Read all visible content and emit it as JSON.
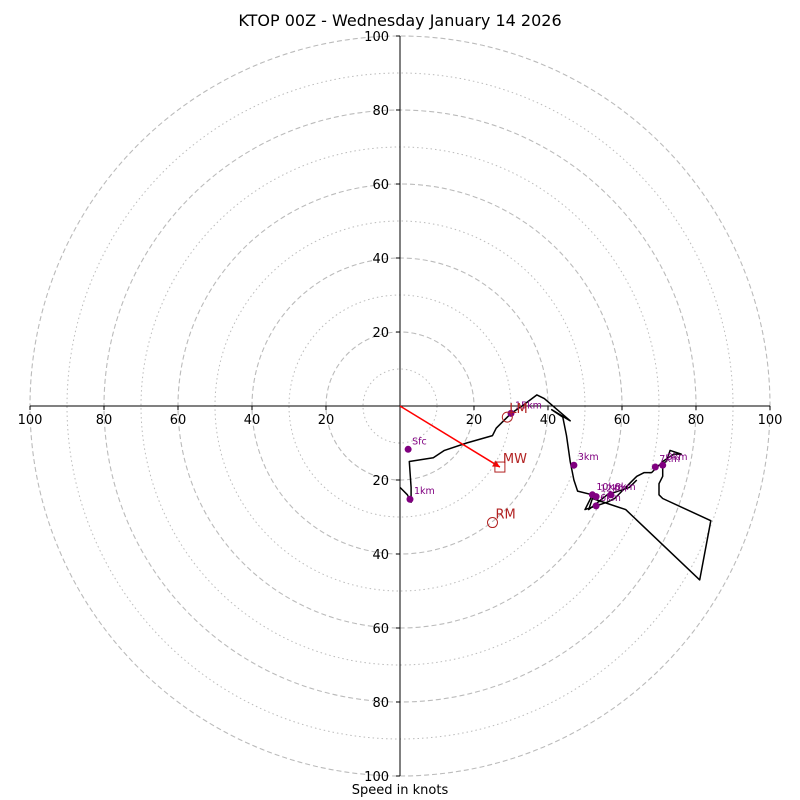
{
  "chart_data": {
    "type": "hodograph",
    "title": "KTOP 00Z - Wednesday January 14 2026",
    "xlabel": "Speed in knots",
    "rings_major": [
      20,
      40,
      60,
      80,
      100
    ],
    "rings_minor": [
      10,
      30,
      50,
      70,
      90
    ],
    "tick_labels": [
      "100",
      "80",
      "60",
      "40",
      "20",
      "20",
      "40",
      "60",
      "80",
      "100"
    ],
    "tick_values": [
      -100,
      -80,
      -60,
      -40,
      -20,
      20,
      40,
      60,
      80,
      100
    ],
    "range": [
      -100,
      100
    ],
    "hodograph_trace": [
      [
        0,
        -22
      ],
      [
        2,
        -24
      ],
      [
        3,
        -26
      ],
      [
        3,
        -22
      ],
      [
        2.5,
        -15
      ],
      [
        9,
        -14
      ],
      [
        12,
        -12
      ],
      [
        18,
        -10
      ],
      [
        25,
        -8
      ],
      [
        26,
        -6
      ],
      [
        28,
        -4
      ],
      [
        30,
        -2
      ],
      [
        33,
        0
      ],
      [
        37,
        3
      ],
      [
        39,
        2
      ],
      [
        46,
        -4
      ],
      [
        41,
        -1
      ],
      [
        44,
        -3
      ],
      [
        45,
        -8
      ],
      [
        46,
        -15
      ],
      [
        47,
        -20
      ],
      [
        48,
        -23
      ],
      [
        52,
        -24
      ],
      [
        50,
        -28
      ],
      [
        56,
        -26
      ],
      [
        58,
        -25
      ],
      [
        60,
        -23
      ],
      [
        62,
        -21
      ],
      [
        64,
        -19
      ],
      [
        66,
        -18
      ],
      [
        68,
        -18
      ],
      [
        70,
        -16
      ],
      [
        72,
        -15
      ],
      [
        73,
        -12
      ],
      [
        76,
        -13
      ],
      [
        74,
        -13
      ],
      [
        71,
        -15
      ],
      [
        71,
        -19
      ],
      [
        70,
        -21
      ],
      [
        70,
        -24
      ],
      [
        71,
        -25
      ],
      [
        84,
        -31
      ],
      [
        81,
        -47
      ],
      [
        61,
        -28
      ],
      [
        52,
        -25
      ],
      [
        51,
        -28
      ],
      [
        56,
        -24
      ],
      [
        62,
        -22
      ],
      [
        64,
        -20
      ]
    ],
    "height_points": [
      {
        "label": "Sfc",
        "u": 2.2,
        "v": -11.7
      },
      {
        "label": "1km",
        "u": 2.7,
        "v": -25.2
      },
      {
        "label": "3km",
        "u": 47,
        "v": -16
      },
      {
        "label": "6km",
        "u": 53,
        "v": -27
      },
      {
        "label": "8km",
        "u": 57,
        "v": -24
      },
      {
        "label": "10km",
        "u": 52,
        "v": -24
      },
      {
        "label": "12km",
        "u": 53,
        "v": -24.5
      },
      {
        "label": "7km",
        "u": 69,
        "v": -16.5
      },
      {
        "label": "9km",
        "u": 71,
        "v": -16
      },
      {
        "label": "15km",
        "u": 30,
        "v": -2
      }
    ],
    "storm_motion": {
      "MW": {
        "label": "MW",
        "u": 27,
        "v": -16.5
      },
      "RM": {
        "label": "RM",
        "u": 25,
        "v": -31.5
      },
      "LM": {
        "label": "LM",
        "u": 29,
        "v": -3
      }
    },
    "colors": {
      "trace": "#000000",
      "points": "#800080",
      "storm": "#b22222",
      "shear_vector": "#ff0000",
      "grid": "#bbbbbb"
    }
  }
}
